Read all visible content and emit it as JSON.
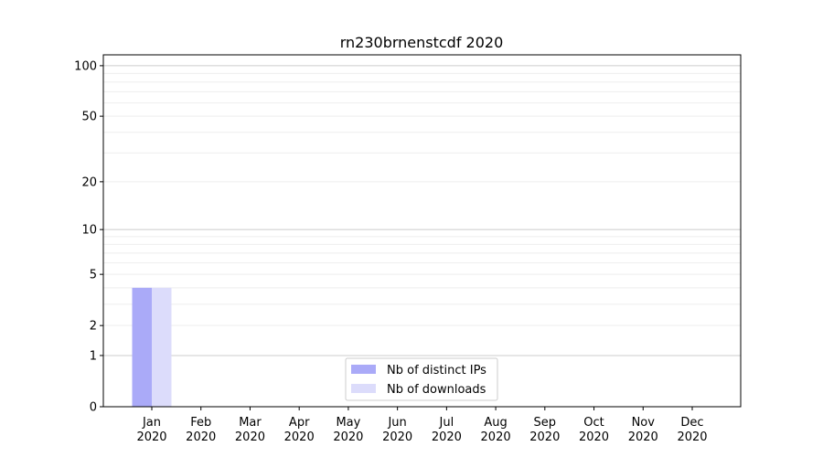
{
  "chart_data": {
    "type": "bar",
    "title": "rn230brnenstcdf 2020",
    "xlabel": "",
    "ylabel": "",
    "yscale": "log(1+y)",
    "ylim": [
      0,
      116
    ],
    "yticks": [
      0,
      1,
      2,
      5,
      10,
      20,
      50,
      100
    ],
    "grid": true,
    "legend_position": "bottom-center",
    "categories": [
      "Jan\n2020",
      "Feb\n2020",
      "Mar\n2020",
      "Apr\n2020",
      "May\n2020",
      "Jun\n2020",
      "Jul\n2020",
      "Aug\n2020",
      "Sep\n2020",
      "Oct\n2020",
      "Nov\n2020",
      "Dec\n2020"
    ],
    "series": [
      {
        "name": "Nb of distinct IPs",
        "color": "#aaaaf8",
        "values": [
          4,
          0,
          0,
          0,
          0,
          0,
          0,
          0,
          0,
          0,
          0,
          0
        ]
      },
      {
        "name": "Nb of downloads",
        "color": "#dcdcfb",
        "values": [
          4,
          0,
          0,
          0,
          0,
          0,
          0,
          0,
          0,
          0,
          0,
          0
        ]
      }
    ]
  }
}
